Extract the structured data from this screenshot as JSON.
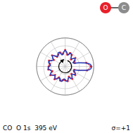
{
  "chart_data": {
    "type": "polar",
    "xlim": [
      0,
      360
    ],
    "xticks": [
      0,
      30,
      60,
      90,
      120,
      150,
      180,
      210,
      240,
      270,
      300,
      330
    ],
    "ylim": [
      0,
      1
    ],
    "yticks": [
      0,
      0.25,
      0.5,
      0.75,
      1
    ],
    "grid": true,
    "tick_labels": false,
    "annotations": [
      "CO  O 1s  395 eV",
      "σ=+1",
      "O",
      "C"
    ],
    "series": [
      {
        "type": "line",
        "color": "#e8202a",
        "marker": "circle",
        "line_style": "solid",
        "x": [
          0,
          10,
          20,
          30,
          40,
          50,
          60,
          70,
          80,
          90,
          100,
          110,
          120,
          130,
          140,
          150,
          160,
          170,
          180,
          190,
          200,
          210,
          220,
          230,
          240,
          250,
          260,
          270,
          280,
          290,
          300,
          310,
          320,
          330,
          340,
          350
        ],
        "values": [
          0.9,
          0.75,
          0.36,
          0.38,
          0.46,
          0.32,
          0.46,
          0.5,
          0.42,
          0.58,
          0.45,
          0.52,
          0.48,
          0.44,
          0.6,
          0.46,
          0.6,
          0.55,
          0.58,
          0.6,
          0.48,
          0.6,
          0.46,
          0.58,
          0.44,
          0.52,
          0.48,
          0.48,
          0.52,
          0.38,
          0.5,
          0.34,
          0.46,
          0.36,
          0.34,
          0.78
        ]
      },
      {
        "type": "line",
        "color": "#1f3fbf",
        "marker": "none",
        "line_style": "solid",
        "x": [
          0,
          5,
          10,
          15,
          20,
          25,
          30,
          35,
          40,
          45,
          50,
          55,
          60,
          65,
          70,
          75,
          80,
          85,
          90,
          95,
          100,
          105,
          110,
          115,
          120,
          125,
          130,
          135,
          140,
          145,
          150,
          155,
          160,
          165,
          170,
          175,
          180,
          185,
          190,
          195,
          200,
          205,
          210,
          215,
          220,
          225,
          230,
          235,
          240,
          245,
          250,
          255,
          260,
          265,
          270,
          275,
          280,
          285,
          290,
          295,
          300,
          305,
          310,
          315,
          320,
          325,
          330,
          335,
          340,
          345,
          350,
          355
        ],
        "values": [
          0.92,
          0.88,
          0.72,
          0.5,
          0.34,
          0.3,
          0.36,
          0.42,
          0.44,
          0.4,
          0.34,
          0.36,
          0.44,
          0.5,
          0.48,
          0.42,
          0.44,
          0.52,
          0.56,
          0.52,
          0.44,
          0.42,
          0.5,
          0.54,
          0.5,
          0.44,
          0.46,
          0.54,
          0.58,
          0.54,
          0.48,
          0.5,
          0.58,
          0.6,
          0.56,
          0.52,
          0.56,
          0.6,
          0.58,
          0.52,
          0.5,
          0.56,
          0.58,
          0.54,
          0.48,
          0.5,
          0.56,
          0.54,
          0.46,
          0.44,
          0.5,
          0.54,
          0.5,
          0.44,
          0.46,
          0.52,
          0.5,
          0.42,
          0.4,
          0.46,
          0.48,
          0.42,
          0.36,
          0.38,
          0.44,
          0.44,
          0.38,
          0.32,
          0.36,
          0.52,
          0.76,
          0.9
        ]
      }
    ]
  }
}
